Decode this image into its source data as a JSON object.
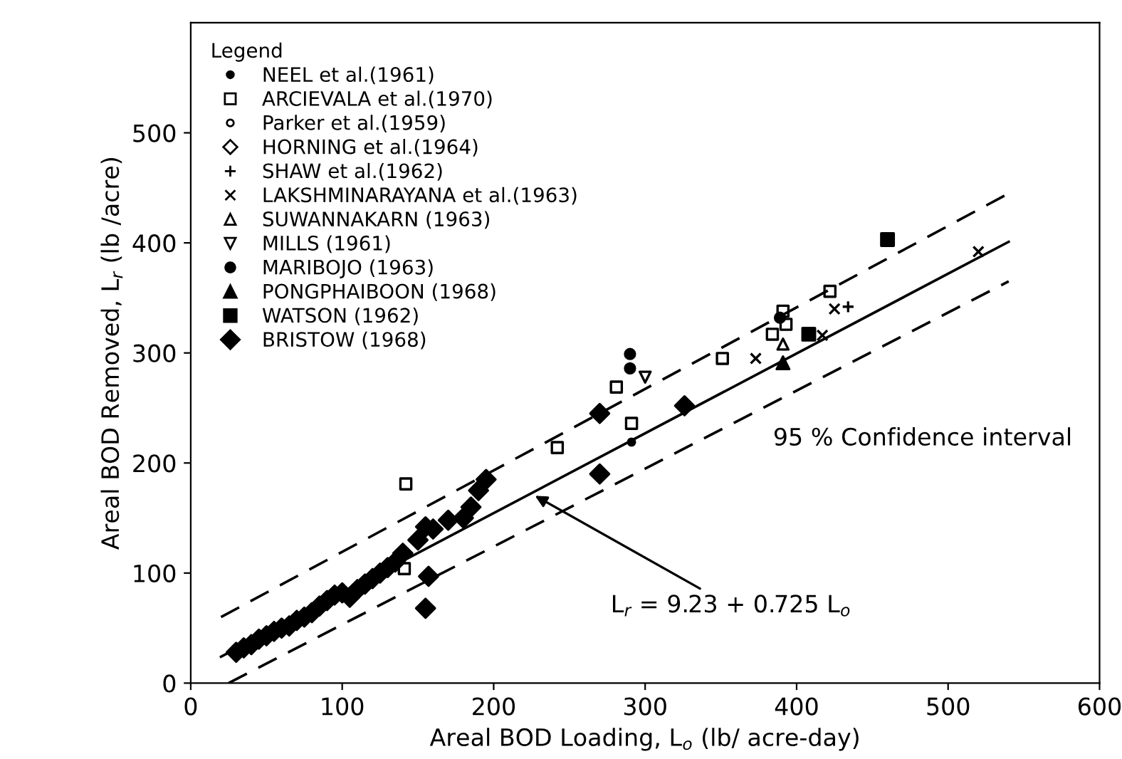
{
  "chart_data": {
    "type": "scatter",
    "xlabel": "Areal BOD Loading, L$_{o}$ (lb/ acre-day)",
    "ylabel": "Areal BOD Removed, L$_{r}$ (lb /acre)",
    "legend_title": "Legend",
    "legend": "top left",
    "grid": false,
    "xlim": [
      0,
      600
    ],
    "ylim": [
      0,
      600
    ],
    "xticks": [
      0,
      100,
      200,
      300,
      400,
      500,
      600
    ],
    "yticks": [
      0,
      100,
      200,
      300,
      400,
      500
    ],
    "annotations": [
      {
        "text": "L$_{r}$ = 9.23 + 0.725 L$_{o}$",
        "x": 225,
        "y": 172
      },
      "95 % Confidence interval"
    ],
    "series": [
      {
        "name": "NEEL et al.(1961)",
        "marker": "circle",
        "color": "#000000",
        "x": [
          291
        ],
        "values": [
          219
        ]
      },
      {
        "name": "ARCIEVALA et al.(1970)",
        "marker": "square",
        "color": "#000000",
        "x": [
          141,
          142,
          242,
          281,
          291,
          351,
          384,
          391,
          393,
          422
        ],
        "values": [
          104,
          181,
          214,
          269,
          236,
          295,
          317,
          338,
          326,
          356
        ]
      },
      {
        "name": "Parker et al.(1959)",
        "marker": "circle",
        "color": "#000000"
      },
      {
        "name": "HORNING et al.(1964)",
        "marker": "diamond",
        "color": "#000000"
      },
      {
        "name": "SHAW et al.(1962)",
        "marker": "plus",
        "color": "#000000",
        "x": [
          434
        ],
        "values": [
          342
        ]
      },
      {
        "name": "LAKSHMINARAYANA et al.(1963)",
        "marker": "x",
        "color": "#000000",
        "x": [
          373,
          417,
          425,
          520
        ],
        "values": [
          295,
          316,
          340,
          392
        ]
      },
      {
        "name": "SUWANNAKARN (1963)",
        "marker": "triangle",
        "color": "#000000",
        "x": [
          391
        ],
        "values": [
          308
        ]
      },
      {
        "name": "MILLS (1961)",
        "marker": "triangle_down",
        "color": "#000000",
        "x": [
          300
        ],
        "values": [
          278
        ]
      },
      {
        "name": "MARIBOJO (1963)",
        "marker": "circle",
        "color": "#000000",
        "x": [
          389,
          290,
          290
        ],
        "values": [
          332,
          299,
          286
        ]
      },
      {
        "name": "PONGPHAIBOON (1968)",
        "marker": "triangle",
        "color": "#000000",
        "x": [
          391
        ],
        "values": [
          291
        ]
      },
      {
        "name": "WATSON (1962)",
        "marker": "square",
        "color": "#000000",
        "x": [
          408,
          460
        ],
        "values": [
          317,
          403
        ]
      },
      {
        "name": "BRISTOW (1968)",
        "marker": "diamond",
        "color": "#000000",
        "x": [
          30,
          35,
          40,
          45,
          50,
          55,
          60,
          65,
          70,
          75,
          80,
          85,
          90,
          95,
          100,
          105,
          110,
          115,
          120,
          125,
          130,
          135,
          140,
          150,
          155,
          155,
          157,
          160,
          170,
          180,
          185,
          190,
          195,
          270,
          270,
          326
        ],
        "values": [
          28,
          32,
          35,
          40,
          43,
          47,
          50,
          52,
          57,
          60,
          64,
          70,
          75,
          80,
          82,
          78,
          85,
          90,
          95,
          100,
          105,
          110,
          118,
          130,
          142,
          68,
          97,
          140,
          148,
          150,
          160,
          175,
          185,
          190,
          245,
          252
        ]
      },
      {
        "type": "line",
        "line_style": "solid",
        "marker": "none",
        "color": "#000000",
        "x": [
          20,
          540
        ],
        "values": [
          24,
          401
        ]
      },
      {
        "type": "line",
        "line_style": "dashed",
        "marker": "none",
        "color": "#000000",
        "x": [
          20,
          540
        ],
        "values": [
          60,
          445
        ]
      },
      {
        "type": "line",
        "line_style": "dashed",
        "marker": "none",
        "color": "#000000",
        "x": [
          25,
          540
        ],
        "values": [
          0,
          365
        ]
      }
    ]
  }
}
